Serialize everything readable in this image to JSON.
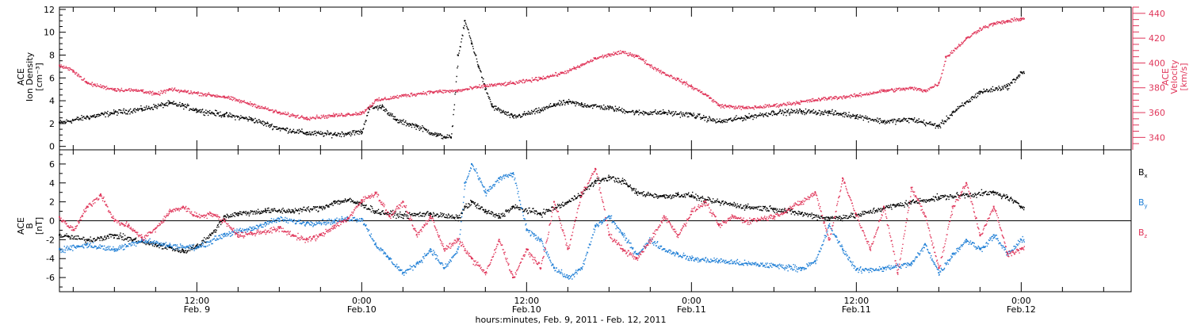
{
  "figure": {
    "xlabel": "hours:minutes, Feb. 9, 2011 - Feb. 12, 2011",
    "x_ticks": [
      {
        "time_h": 12,
        "line1": "12:00",
        "line2": "Feb. 9"
      },
      {
        "time_h": 24,
        "line1": "0:00",
        "line2": "Feb.10"
      },
      {
        "time_h": 36,
        "line1": "12:00",
        "line2": "Feb.10"
      },
      {
        "time_h": 48,
        "line1": "0:00",
        "line2": "Feb.11"
      },
      {
        "time_h": 60,
        "line1": "12:00",
        "line2": "Feb.11"
      },
      {
        "time_h": 72,
        "line1": "0:00",
        "line2": "Feb.12"
      }
    ],
    "x_range_hours_from_feb9_0000": [
      2,
      80
    ]
  },
  "chart_data": [
    {
      "type": "scatter",
      "panel": "top",
      "ylabel_left": [
        "ACE",
        "Ion Density",
        "[cm⁻³]"
      ],
      "ylabel_right": [
        "ACE",
        "Velocity",
        "[km/s]"
      ],
      "ylim_left": [
        -0.3,
        12.2
      ],
      "yticks_left": [
        0,
        2,
        4,
        6,
        8,
        10,
        12
      ],
      "ylim_right": [
        330,
        445
      ],
      "yticks_right": [
        340,
        360,
        380,
        400,
        420,
        440
      ],
      "series": [
        {
          "name": "",
          "axis": "left",
          "color": "#000000",
          "points": [
            [
              2,
              2.1
            ],
            [
              4,
              2.6
            ],
            [
              6,
              3.0
            ],
            [
              8,
              3.3
            ],
            [
              10,
              3.8
            ],
            [
              11,
              3.6
            ],
            [
              12,
              3.2
            ],
            [
              14,
              2.8
            ],
            [
              16,
              2.4
            ],
            [
              18,
              1.6
            ],
            [
              20,
              1.2
            ],
            [
              22,
              1.1
            ],
            [
              24,
              1.3
            ],
            [
              24.5,
              3.4
            ],
            [
              25.5,
              3.5
            ],
            [
              26.5,
              2.3
            ],
            [
              28,
              1.8
            ],
            [
              29.5,
              1.0
            ],
            [
              30.5,
              0.8
            ],
            [
              31,
              8.0
            ],
            [
              31.5,
              11.0
            ],
            [
              32,
              9.0
            ],
            [
              32.5,
              7.0
            ],
            [
              33,
              5.0
            ],
            [
              33.5,
              3.5
            ],
            [
              35,
              2.6
            ],
            [
              37,
              3.2
            ],
            [
              38,
              3.7
            ],
            [
              39,
              3.9
            ],
            [
              40,
              3.7
            ],
            [
              42,
              3.4
            ],
            [
              44,
              3.0
            ],
            [
              46,
              3.0
            ],
            [
              48,
              2.8
            ],
            [
              50,
              2.2
            ],
            [
              52,
              2.6
            ],
            [
              54,
              3.0
            ],
            [
              56,
              3.1
            ],
            [
              58,
              3.0
            ],
            [
              60,
              2.7
            ],
            [
              62,
              2.2
            ],
            [
              64,
              2.4
            ],
            [
              66,
              1.8
            ],
            [
              67,
              3.0
            ],
            [
              69,
              4.8
            ],
            [
              71,
              5.3
            ],
            [
              72,
              6.5
            ]
          ]
        },
        {
          "name": "",
          "axis": "right",
          "color": "#e0365a",
          "points": [
            [
              2,
              398
            ],
            [
              3,
              394
            ],
            [
              4,
              384
            ],
            [
              6,
              379
            ],
            [
              8,
              378
            ],
            [
              9,
              375
            ],
            [
              10,
              379
            ],
            [
              12,
              376
            ],
            [
              14,
              373
            ],
            [
              16,
              367
            ],
            [
              18,
              360
            ],
            [
              20,
              356
            ],
            [
              22,
              358
            ],
            [
              24,
              360
            ],
            [
              25,
              370
            ],
            [
              27,
              374
            ],
            [
              29,
              377
            ],
            [
              31,
              378
            ],
            [
              33,
              382
            ],
            [
              35,
              384
            ],
            [
              37,
              388
            ],
            [
              38.5,
              392
            ],
            [
              39.5,
              396
            ],
            [
              41,
              404
            ],
            [
              42,
              407
            ],
            [
              43,
              409
            ],
            [
              44,
              406
            ],
            [
              45,
              398
            ],
            [
              46,
              392
            ],
            [
              47,
              387
            ],
            [
              48,
              381
            ],
            [
              49,
              375
            ],
            [
              50,
              366
            ],
            [
              52,
              364
            ],
            [
              54,
              366
            ],
            [
              56,
              369
            ],
            [
              58,
              372
            ],
            [
              60,
              374
            ],
            [
              62,
              378
            ],
            [
              64,
              380
            ],
            [
              65,
              378
            ],
            [
              66,
              384
            ],
            [
              66.5,
              405
            ],
            [
              68,
              420
            ],
            [
              69,
              428
            ],
            [
              70,
              432
            ],
            [
              71,
              434
            ],
            [
              72,
              436
            ]
          ]
        }
      ]
    },
    {
      "type": "scatter",
      "panel": "bottom",
      "ylabel_left": [
        "ACE",
        "B",
        "[nT]"
      ],
      "ylim": [
        -7.5,
        7.5
      ],
      "yticks": [
        -6,
        -4,
        -2,
        0,
        2,
        4,
        6
      ],
      "zero_line": true,
      "legend": "right",
      "series": [
        {
          "name": "Bx",
          "color": "#000000",
          "points": [
            [
              2,
              -1.5
            ],
            [
              4,
              -2.0
            ],
            [
              6,
              -1.5
            ],
            [
              8,
              -2.2
            ],
            [
              10,
              -2.8
            ],
            [
              11,
              -3.2
            ],
            [
              12,
              -2.6
            ],
            [
              13,
              -1.5
            ],
            [
              14,
              0.5
            ],
            [
              15,
              0.8
            ],
            [
              17,
              1.1
            ],
            [
              19,
              1.1
            ],
            [
              21,
              1.4
            ],
            [
              22,
              2.0
            ],
            [
              23,
              2.2
            ],
            [
              24,
              1.8
            ],
            [
              25,
              1.0
            ],
            [
              27,
              0.6
            ],
            [
              29,
              0.8
            ],
            [
              31,
              0.3
            ],
            [
              31.5,
              1.5
            ],
            [
              32,
              2.0
            ],
            [
              33,
              1.0
            ],
            [
              34,
              0.5
            ],
            [
              35,
              1.5
            ],
            [
              37,
              0.8
            ],
            [
              39,
              2.0
            ],
            [
              40,
              3.0
            ],
            [
              41,
              4.2
            ],
            [
              42,
              4.6
            ],
            [
              43,
              4.2
            ],
            [
              44,
              3.0
            ],
            [
              46,
              2.6
            ],
            [
              47,
              2.8
            ],
            [
              48,
              2.7
            ],
            [
              49,
              2.2
            ],
            [
              50,
              2.0
            ],
            [
              52,
              1.5
            ],
            [
              54,
              1.3
            ],
            [
              56,
              0.8
            ],
            [
              58,
              0.3
            ],
            [
              60,
              0.6
            ],
            [
              62,
              1.4
            ],
            [
              64,
              2.0
            ],
            [
              66,
              2.5
            ],
            [
              68,
              2.8
            ],
            [
              70,
              3.0
            ],
            [
              71,
              2.5
            ],
            [
              72,
              1.5
            ]
          ]
        },
        {
          "name": "By",
          "color": "#1f7fd6",
          "points": [
            [
              2,
              -3.0
            ],
            [
              4,
              -2.5
            ],
            [
              6,
              -3.0
            ],
            [
              8,
              -2.0
            ],
            [
              10,
              -2.6
            ],
            [
              12,
              -2.8
            ],
            [
              14,
              -1.4
            ],
            [
              16,
              -0.8
            ],
            [
              17,
              -0.2
            ],
            [
              18,
              0.2
            ],
            [
              20,
              -0.2
            ],
            [
              22,
              0.0
            ],
            [
              23,
              0.3
            ],
            [
              24,
              0.2
            ],
            [
              25,
              -2.5
            ],
            [
              26,
              -4.0
            ],
            [
              27,
              -5.5
            ],
            [
              28,
              -4.5
            ],
            [
              29,
              -3.0
            ],
            [
              30,
              -5.0
            ],
            [
              31,
              -3.0
            ],
            [
              31.5,
              4.0
            ],
            [
              32,
              6.0
            ],
            [
              33,
              3.0
            ],
            [
              34,
              4.5
            ],
            [
              35,
              5.0
            ],
            [
              36,
              -1.0
            ],
            [
              37,
              -2.0
            ],
            [
              38,
              -5.0
            ],
            [
              39,
              -6.0
            ],
            [
              40,
              -5.0
            ],
            [
              41,
              -0.5
            ],
            [
              42,
              0.5
            ],
            [
              43,
              -1.5
            ],
            [
              44,
              -3.5
            ],
            [
              45,
              -2.0
            ],
            [
              46,
              -3.0
            ],
            [
              47,
              -3.5
            ],
            [
              48,
              -4.0
            ],
            [
              50,
              -4.2
            ],
            [
              52,
              -4.5
            ],
            [
              54,
              -4.7
            ],
            [
              56,
              -5.0
            ],
            [
              57,
              -4.3
            ],
            [
              58,
              -0.5
            ],
            [
              59,
              -3.0
            ],
            [
              60,
              -5.2
            ],
            [
              62,
              -5.0
            ],
            [
              64,
              -4.5
            ],
            [
              65,
              -2.5
            ],
            [
              66,
              -5.5
            ],
            [
              67,
              -3.5
            ],
            [
              68,
              -2.0
            ],
            [
              69,
              -3.0
            ],
            [
              70,
              -1.5
            ],
            [
              71,
              -3.5
            ],
            [
              72,
              -2.0
            ]
          ]
        },
        {
          "name": "Bz",
          "color": "#e0365a",
          "points": [
            [
              2,
              0.4
            ],
            [
              3,
              -1.0
            ],
            [
              4,
              1.5
            ],
            [
              5,
              2.8
            ],
            [
              6,
              0.0
            ],
            [
              7,
              -0.5
            ],
            [
              8,
              -1.8
            ],
            [
              9,
              -0.8
            ],
            [
              10,
              1.0
            ],
            [
              11,
              1.5
            ],
            [
              12,
              0.5
            ],
            [
              13,
              0.8
            ],
            [
              14,
              0.0
            ],
            [
              15,
              -1.5
            ],
            [
              16,
              -1.3
            ],
            [
              18,
              -0.8
            ],
            [
              19,
              -1.5
            ],
            [
              20,
              -2.0
            ],
            [
              21,
              -1.5
            ],
            [
              22,
              -0.5
            ],
            [
              23,
              0.3
            ],
            [
              24,
              2.2
            ],
            [
              25,
              3.0
            ],
            [
              26,
              0.5
            ],
            [
              27,
              2.0
            ],
            [
              28,
              -1.5
            ],
            [
              29,
              0.5
            ],
            [
              30,
              -3.0
            ],
            [
              31,
              -2.0
            ],
            [
              32,
              -4.0
            ],
            [
              33,
              -5.5
            ],
            [
              34,
              -2.0
            ],
            [
              35,
              -6.0
            ],
            [
              36,
              -3.0
            ],
            [
              37,
              -5.0
            ],
            [
              38,
              2.0
            ],
            [
              39,
              -3.0
            ],
            [
              40,
              3.0
            ],
            [
              41,
              5.5
            ],
            [
              42,
              -1.5
            ],
            [
              43,
              -3.0
            ],
            [
              44,
              -4.0
            ],
            [
              45,
              -2.0
            ],
            [
              46,
              0.5
            ],
            [
              47,
              -1.5
            ],
            [
              48,
              1.0
            ],
            [
              49,
              2.0
            ],
            [
              50,
              -0.5
            ],
            [
              51,
              0.5
            ],
            [
              52,
              0.0
            ],
            [
              54,
              0.5
            ],
            [
              56,
              2.0
            ],
            [
              57,
              3.0
            ],
            [
              58,
              -2.0
            ],
            [
              59,
              4.5
            ],
            [
              60,
              0.5
            ],
            [
              61,
              -3.0
            ],
            [
              62,
              1.5
            ],
            [
              63,
              -5.5
            ],
            [
              64,
              3.5
            ],
            [
              65,
              0.5
            ],
            [
              66,
              -5.0
            ],
            [
              67,
              1.5
            ],
            [
              68,
              4.0
            ],
            [
              69,
              -1.5
            ],
            [
              70,
              1.5
            ],
            [
              71,
              -3.5
            ],
            [
              72,
              -3.0
            ]
          ]
        }
      ]
    }
  ]
}
